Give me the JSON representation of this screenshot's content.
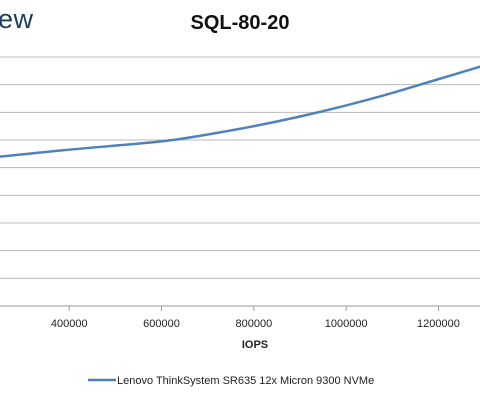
{
  "brand": {
    "text": "ew"
  },
  "chart_data": {
    "type": "line",
    "title": "SQL-80-20",
    "xlabel": "IOPS",
    "ylabel": "",
    "x_ticks": [
      400000,
      600000,
      800000,
      1000000,
      1200000
    ],
    "xlim": [
      250000,
      1290000
    ],
    "ylim": [
      0,
      9
    ],
    "grid": true,
    "legend_position": "bottom",
    "series": [
      {
        "name": "Lenovo ThinkSystem SR635 12x Micron 9300 NVMe",
        "color": "#4f81bd",
        "x": [
          250000,
          400000,
          600000,
          700000,
          800000,
          900000,
          1000000,
          1100000,
          1200000,
          1290000
        ],
        "y": [
          5.4,
          5.65,
          5.95,
          6.2,
          6.5,
          6.85,
          7.25,
          7.7,
          8.2,
          8.65
        ]
      }
    ]
  }
}
